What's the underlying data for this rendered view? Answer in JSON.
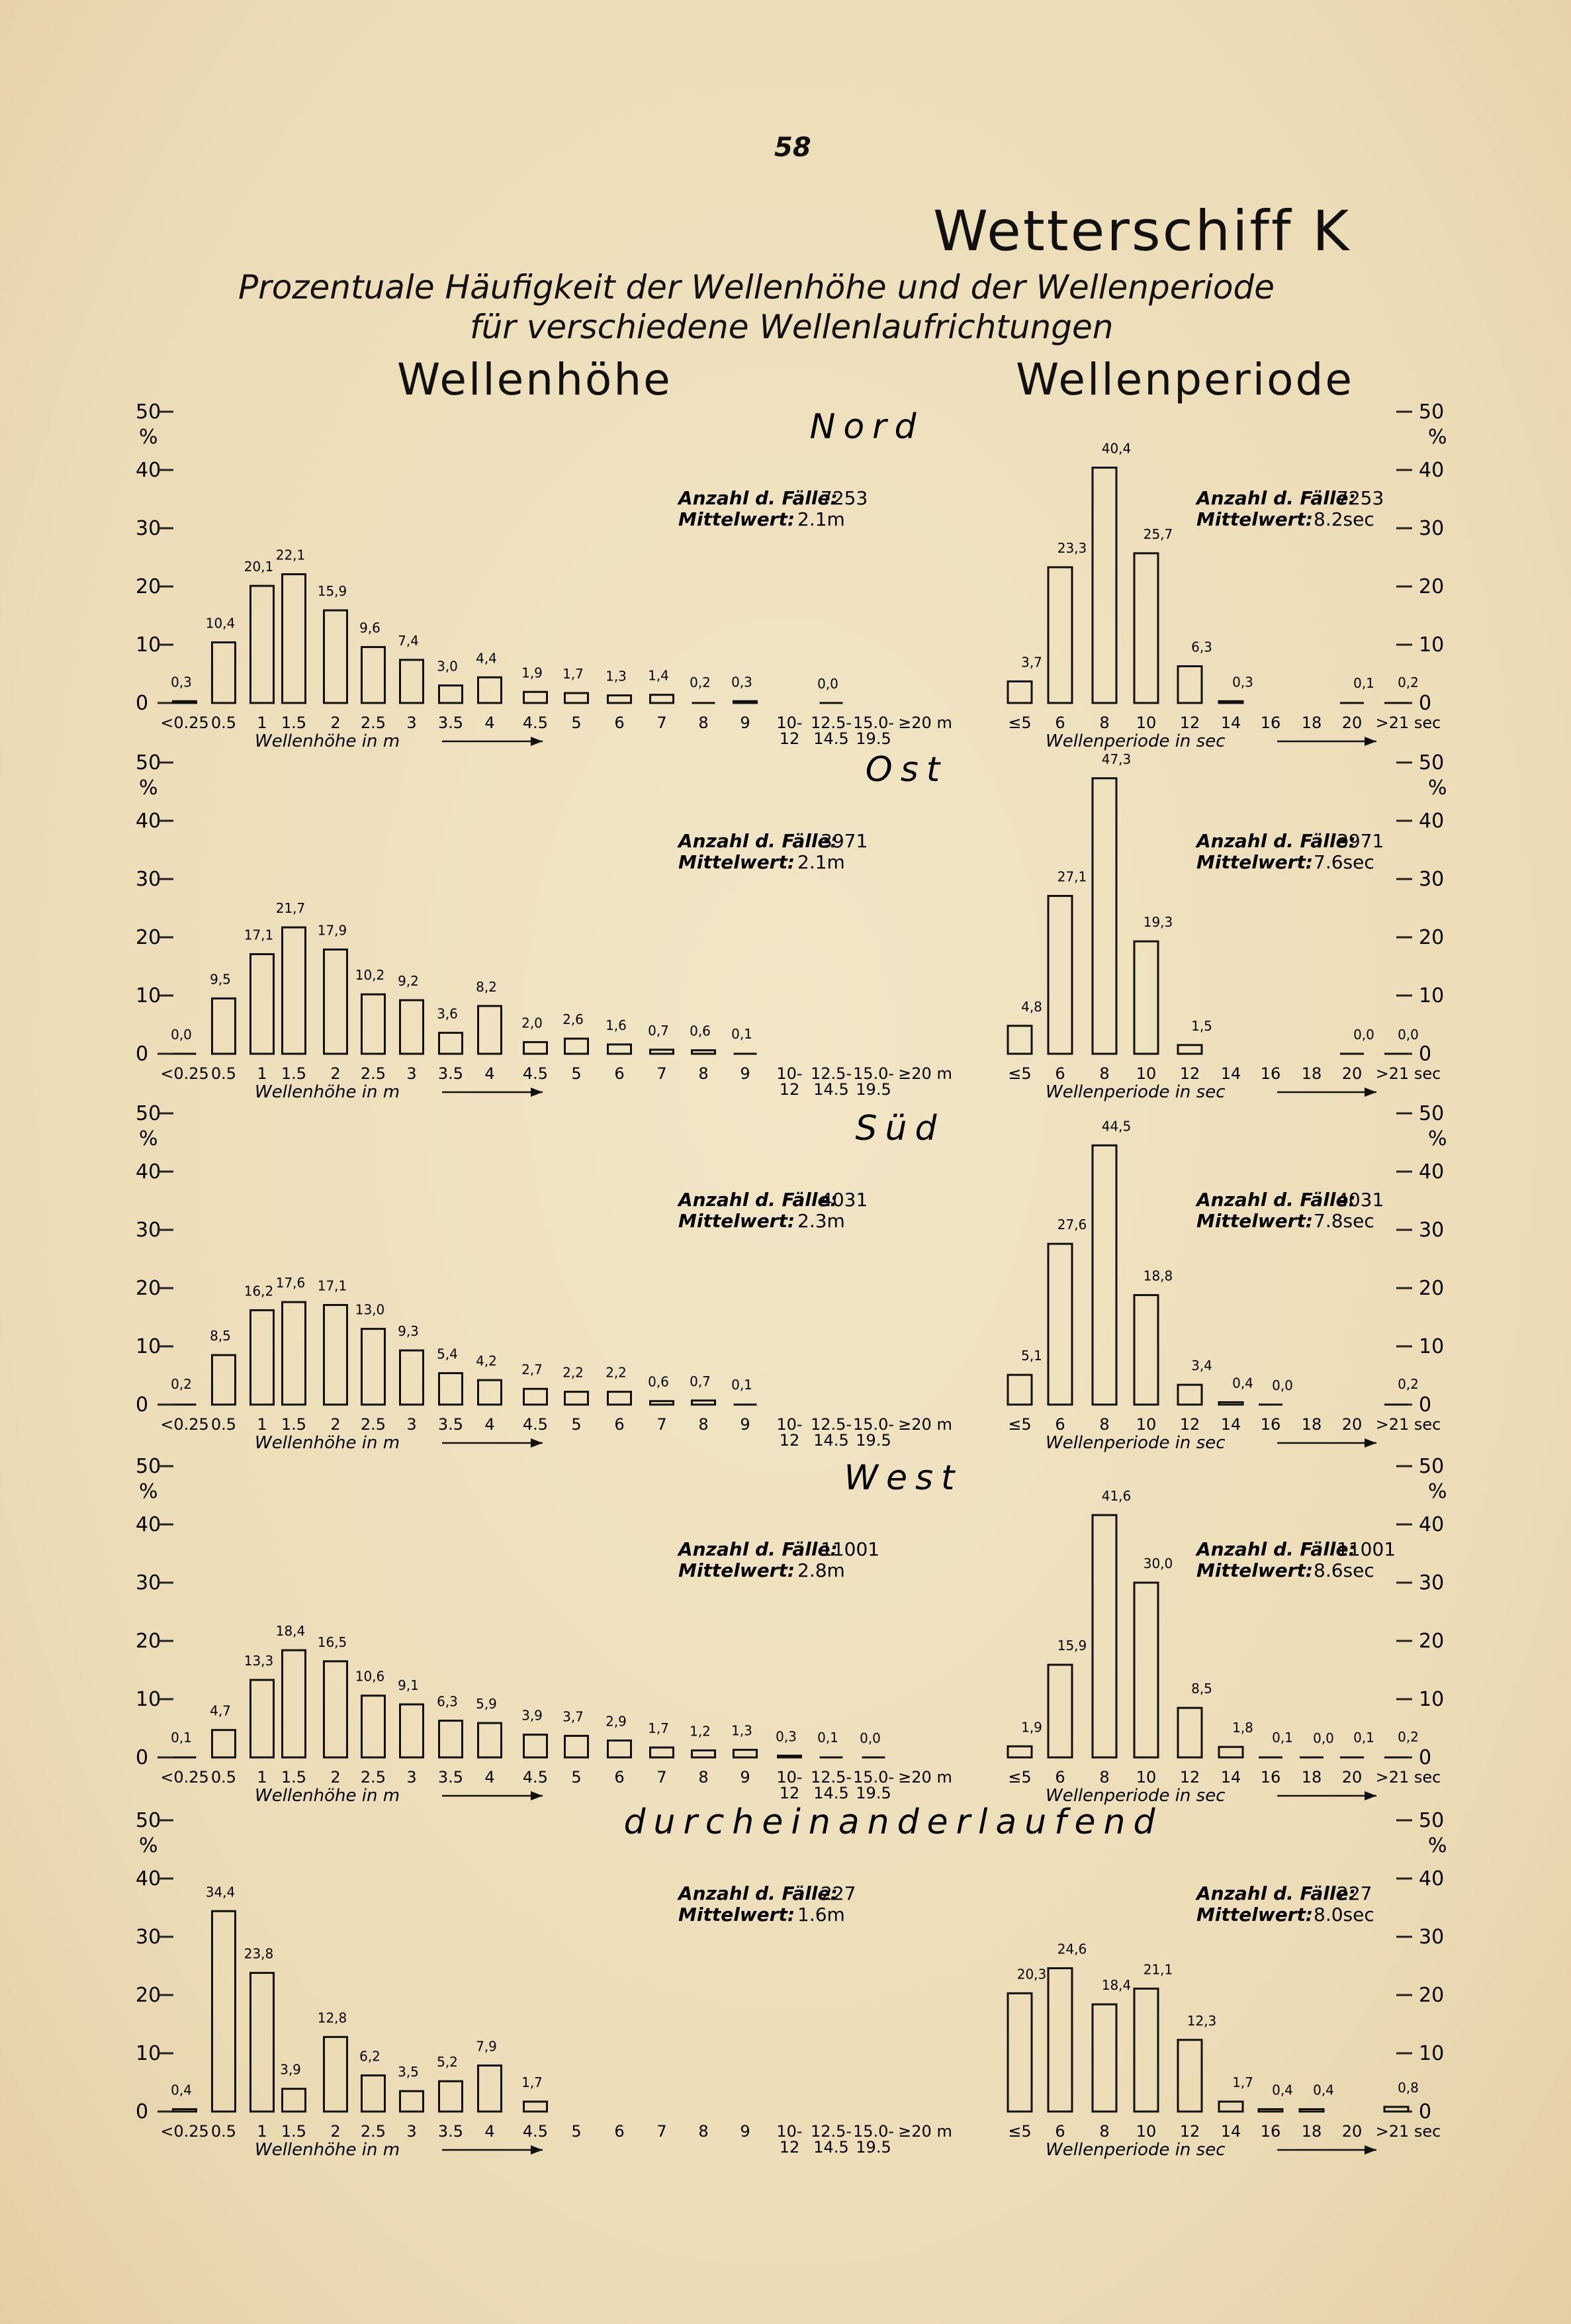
{
  "page_number": "58",
  "title": "Wetterschiff K",
  "subtitle_line1": "Prozentuale Häufigkeit der Wellenhöhe  und der Wellenperiode",
  "subtitle_line2": "für verschiedene Wellenlaufrichtungen",
  "left_heading": "Wellenhöhe",
  "right_heading": "Wellenperiode",
  "chart_data": [
    {
      "type": "bar",
      "panel": "Nord",
      "side": "height",
      "title": "Nord",
      "count_label": "Anzahl d. Fälle:",
      "count": "7253",
      "mean_label": "Mittelwert:",
      "mean": "2.1m",
      "categories": [
        "<0.25",
        "0.5",
        "1",
        "1.5",
        "2",
        "2.5",
        "3",
        "3.5",
        "4",
        "4.5",
        "5",
        "6",
        "7",
        "8",
        "9",
        "10-12",
        "12.5-14.5",
        "15.0-19.5",
        "≥20 m"
      ],
      "values": [
        0.3,
        10.4,
        20.1,
        22.1,
        15.9,
        9.6,
        7.4,
        3.0,
        4.4,
        1.9,
        1.7,
        1.3,
        1.4,
        0.2,
        0.3,
        null,
        0.0,
        null,
        null
      ],
      "labels": [
        "0,3",
        "10,4",
        "20,1",
        "22,1",
        "15,9",
        "9,6",
        "7,4",
        "3,0",
        "4,4",
        "1,9",
        "1,7",
        "1,3",
        "1,4",
        "0,2",
        "0,3",
        "",
        "0,0",
        "",
        ""
      ],
      "ylim": [
        0,
        50
      ],
      "ylabel": "%",
      "xlabel": "Wellenhöhe  in  m"
    },
    {
      "type": "bar",
      "panel": "Nord",
      "side": "period",
      "count_label": "Anzahl d. Fälle:",
      "count": "7253",
      "mean_label": "Mittelwert:",
      "mean": "8.2sec",
      "categories": [
        "≤5",
        "6",
        "8",
        "10",
        "12",
        "14",
        "16",
        "18",
        "20",
        ">21 sec"
      ],
      "values": [
        3.7,
        23.3,
        40.4,
        25.7,
        6.3,
        0.3,
        null,
        null,
        0.1,
        0.2
      ],
      "labels": [
        "3,7",
        "23,3",
        "40,4",
        "25,7",
        "6,3",
        "0,3",
        "",
        "",
        "0,1",
        "0,2"
      ],
      "ylim": [
        0,
        50
      ],
      "ylabel": "%",
      "xlabel": "Wellenperiode  in  sec"
    },
    {
      "type": "bar",
      "panel": "Ost",
      "side": "height",
      "title": "Ost",
      "count_label": "Anzahl d. Fälle:",
      "count": "3971",
      "mean_label": "Mittelwert:",
      "mean": "2.1m",
      "categories": [
        "<0.25",
        "0.5",
        "1",
        "1.5",
        "2",
        "2.5",
        "3",
        "3.5",
        "4",
        "4.5",
        "5",
        "6",
        "7",
        "8",
        "9",
        "10-12",
        "12.5-14.5",
        "15.0-19.5",
        "≥20 m"
      ],
      "values": [
        0.0,
        9.5,
        17.1,
        21.7,
        17.9,
        10.2,
        9.2,
        3.6,
        8.2,
        2.0,
        2.6,
        1.6,
        0.7,
        0.6,
        0.1,
        null,
        null,
        null,
        null
      ],
      "labels": [
        "0,0",
        "9,5",
        "17,1",
        "21,7",
        "17,9",
        "10,2",
        "9,2",
        "3,6",
        "8,2",
        "2,0",
        "2,6",
        "1,6",
        "0,7",
        "0,6",
        "0,1",
        "",
        "",
        "",
        ""
      ],
      "ylim": [
        0,
        50
      ],
      "ylabel": "%",
      "xlabel": "Wellenhöhe  in  m"
    },
    {
      "type": "bar",
      "panel": "Ost",
      "side": "period",
      "count_label": "Anzahl d. Fälle:",
      "count": "3971",
      "mean_label": "Mittelwert:",
      "mean": "7.6sec",
      "categories": [
        "≤5",
        "6",
        "8",
        "10",
        "12",
        "14",
        "16",
        "18",
        "20",
        ">21 sec"
      ],
      "values": [
        4.8,
        27.1,
        47.3,
        19.3,
        1.5,
        null,
        null,
        null,
        0.0,
        0.0
      ],
      "labels": [
        "4,8",
        "27,1",
        "47,3",
        "19,3",
        "1,5",
        "",
        "",
        "",
        "0,0",
        "0,0"
      ],
      "ylim": [
        0,
        50
      ],
      "ylabel": "%",
      "xlabel": "Wellenperiode  in  sec"
    },
    {
      "type": "bar",
      "panel": "Süd",
      "side": "height",
      "title": "Süd",
      "count_label": "Anzahl d. Fälle:",
      "count": "4031",
      "mean_label": "Mittelwert:",
      "mean": "2.3m",
      "categories": [
        "<0.25",
        "0.5",
        "1",
        "1.5",
        "2",
        "2.5",
        "3",
        "3.5",
        "4",
        "4.5",
        "5",
        "6",
        "7",
        "8",
        "9",
        "10-12",
        "12.5-14.5",
        "15.0-19.5",
        "≥20 m"
      ],
      "values": [
        0.2,
        8.5,
        16.2,
        17.6,
        17.1,
        13.0,
        9.3,
        5.4,
        4.2,
        2.7,
        2.2,
        2.2,
        0.6,
        0.7,
        0.1,
        null,
        null,
        null,
        null
      ],
      "labels": [
        "0,2",
        "8,5",
        "16,2",
        "17,6",
        "17,1",
        "13,0",
        "9,3",
        "5,4",
        "4,2",
        "2,7",
        "2,2",
        "2,2",
        "0,6",
        "0,7",
        "0,1",
        "",
        "",
        "",
        ""
      ],
      "ylim": [
        0,
        50
      ],
      "ylabel": "%",
      "xlabel": "Wellenhöhe  in  m"
    },
    {
      "type": "bar",
      "panel": "Süd",
      "side": "period",
      "count_label": "Anzahl d. Fälle:",
      "count": "4031",
      "mean_label": "Mittelwert:",
      "mean": "7.8sec",
      "categories": [
        "≤5",
        "6",
        "8",
        "10",
        "12",
        "14",
        "16",
        "18",
        "20",
        ">21 sec"
      ],
      "values": [
        5.1,
        27.6,
        44.5,
        18.8,
        3.4,
        0.4,
        0.0,
        null,
        null,
        0.2
      ],
      "labels": [
        "5,1",
        "27,6",
        "44,5",
        "18,8",
        "3,4",
        "0,4",
        "0,0",
        "",
        "",
        "0,2"
      ],
      "ylim": [
        0,
        50
      ],
      "ylabel": "%",
      "xlabel": "Wellenperiode  in  sec"
    },
    {
      "type": "bar",
      "panel": "West",
      "side": "height",
      "title": "West",
      "count_label": "Anzahl d. Fälle:",
      "count": "11001",
      "mean_label": "Mittelwert:",
      "mean": "2.8m",
      "categories": [
        "<0.25",
        "0.5",
        "1",
        "1.5",
        "2",
        "2.5",
        "3",
        "3.5",
        "4",
        "4.5",
        "5",
        "6",
        "7",
        "8",
        "9",
        "10-12",
        "12.5-14.5",
        "15.0-19.5",
        "≥20 m"
      ],
      "values": [
        0.1,
        4.7,
        13.3,
        18.4,
        16.5,
        10.6,
        9.1,
        6.3,
        5.9,
        3.9,
        3.7,
        2.9,
        1.7,
        1.2,
        1.3,
        0.3,
        0.1,
        0.0,
        null
      ],
      "labels": [
        "0,1",
        "4,7",
        "13,3",
        "18,4",
        "16,5",
        "10,6",
        "9,1",
        "6,3",
        "5,9",
        "3,9",
        "3,7",
        "2,9",
        "1,7",
        "1,2",
        "1,3",
        "0,3",
        "0,1",
        "0,0",
        ""
      ],
      "ylim": [
        0,
        50
      ],
      "ylabel": "%",
      "xlabel": "Wellenhöhe  in  m"
    },
    {
      "type": "bar",
      "panel": "West",
      "side": "period",
      "count_label": "Anzahl d. Fälle:",
      "count": "11001",
      "mean_label": "Mittelwert:",
      "mean": "8.6sec",
      "categories": [
        "≤5",
        "6",
        "8",
        "10",
        "12",
        "14",
        "16",
        "18",
        "20",
        ">21 sec"
      ],
      "values": [
        1.9,
        15.9,
        41.6,
        30.0,
        8.5,
        1.8,
        0.1,
        0.0,
        0.1,
        0.2
      ],
      "labels": [
        "1,9",
        "15,9",
        "41,6",
        "30,0",
        "8,5",
        "1,8",
        "0,1",
        "0,0",
        "0,1",
        "0,2"
      ],
      "ylim": [
        0,
        50
      ],
      "ylabel": "%",
      "xlabel": "Wellenperiode  in  sec"
    },
    {
      "type": "bar",
      "panel": "durcheinanderlaufend",
      "side": "height",
      "title": "durcheinanderlaufend",
      "count_label": "Anzahl d. Fälle:",
      "count": "227",
      "mean_label": "Mittelwert:",
      "mean": "1.6m",
      "categories": [
        "<0.25",
        "0.5",
        "1",
        "1.5",
        "2",
        "2.5",
        "3",
        "3.5",
        "4",
        "4.5",
        "5",
        "6",
        "7",
        "8",
        "9",
        "10-12",
        "12.5-14.5",
        "15.0-19.5",
        "≥20 m"
      ],
      "values": [
        0.4,
        34.4,
        23.8,
        3.9,
        12.8,
        6.2,
        3.5,
        5.2,
        7.9,
        1.7,
        null,
        null,
        null,
        null,
        null,
        null,
        null,
        null,
        null
      ],
      "labels": [
        "0,4",
        "34,4",
        "23,8",
        "3,9",
        "12,8",
        "6,2",
        "3,5",
        "5,2",
        "7,9",
        "1,7",
        "",
        "",
        "",
        "",
        "",
        "",
        "",
        "",
        ""
      ],
      "ylim": [
        0,
        50
      ],
      "ylabel": "%",
      "xlabel": "Wellenhöhe  in  m"
    },
    {
      "type": "bar",
      "panel": "durcheinanderlaufend",
      "side": "period",
      "count_label": "Anzahl d. Fälle:",
      "count": "227",
      "mean_label": "Mittelwert:",
      "mean": "8.0sec",
      "categories": [
        "≤5",
        "6",
        "8",
        "10",
        "12",
        "14",
        "16",
        "18",
        "20",
        ">21 sec"
      ],
      "values": [
        20.3,
        24.6,
        18.4,
        21.1,
        12.3,
        1.7,
        0.4,
        0.4,
        null,
        0.8
      ],
      "labels": [
        "20,3",
        "24,6",
        "18,4",
        "21,1",
        "12,3",
        "1,7",
        "0,4",
        "0,4",
        "",
        "0,8"
      ],
      "ylim": [
        0,
        50
      ],
      "ylabel": "%",
      "xlabel": "Wellenperiode  in  sec"
    }
  ],
  "y_ticks": [
    "0",
    "10",
    "20",
    "30",
    "40",
    "50"
  ],
  "y_unit": "%"
}
